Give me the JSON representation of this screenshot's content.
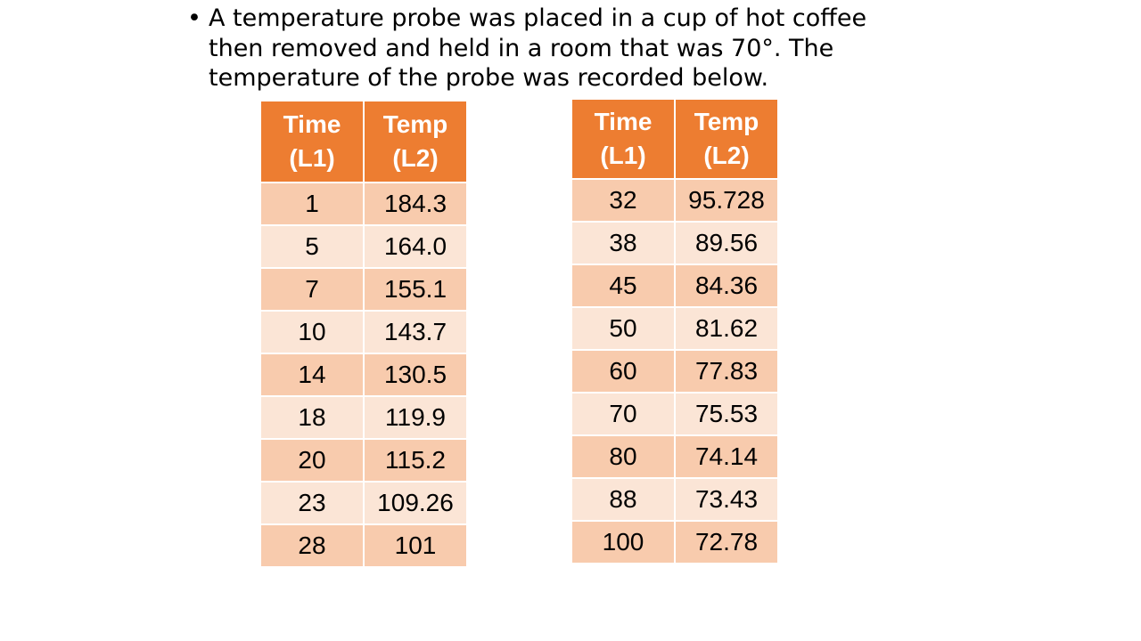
{
  "intro": {
    "bullet": "•",
    "text": "A temperature probe was placed in a cup of hot coffee then removed and held in a room that was 70°.  The temperature of the probe was recorded below."
  },
  "tables": [
    {
      "headers": [
        "Time (L1)",
        "Temp (L2)"
      ],
      "rows": [
        [
          "1",
          "184.3"
        ],
        [
          "5",
          "164.0"
        ],
        [
          "7",
          "155.1"
        ],
        [
          "10",
          "143.7"
        ],
        [
          "14",
          "130.5"
        ],
        [
          "18",
          "119.9"
        ],
        [
          "20",
          "115.2"
        ],
        [
          "23",
          "109.26"
        ],
        [
          "28",
          "101"
        ]
      ]
    },
    {
      "headers": [
        "Time (L1)",
        "Temp (L2)"
      ],
      "rows": [
        [
          "32",
          "95.728"
        ],
        [
          "38",
          "89.56"
        ],
        [
          "45",
          "84.36"
        ],
        [
          "50",
          "81.62"
        ],
        [
          "60",
          "77.83"
        ],
        [
          "70",
          "75.53"
        ],
        [
          "80",
          "74.14"
        ],
        [
          "88",
          "73.43"
        ],
        [
          "100",
          "72.78"
        ]
      ]
    }
  ],
  "colors": {
    "header_bg": "#ED7D31",
    "row_dark": "#F8CBAD",
    "row_light": "#FBE5D6"
  }
}
